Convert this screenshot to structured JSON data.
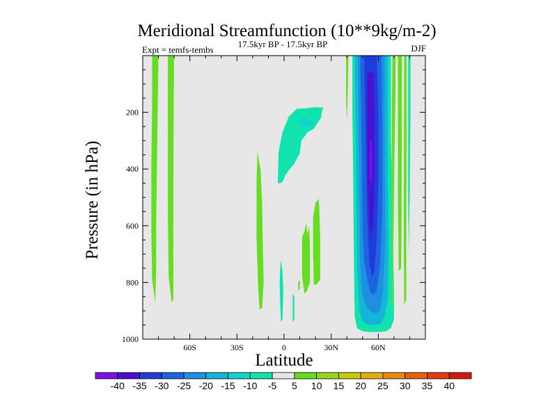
{
  "chart_data": {
    "type": "heatmap",
    "title": "Meridional Streamfunction (10**9kg/m-2)",
    "subtitle": "17.5kyr BP - 17.5kyr BP",
    "left_string": "Expt = temfs-tembs",
    "right_string": "DJF",
    "xlabel": "Latitude",
    "ylabel": "Pressure (in hPa)",
    "xlim": [
      -90,
      90
    ],
    "ylim": [
      0,
      1000
    ],
    "x_ticks": [
      {
        "value": -60,
        "label": "60S"
      },
      {
        "value": -30,
        "label": "30S"
      },
      {
        "value": 0,
        "label": "0"
      },
      {
        "value": 30,
        "label": "30N"
      },
      {
        "value": 60,
        "label": "60N"
      }
    ],
    "y_ticks": [
      {
        "value": 200,
        "label": "200"
      },
      {
        "value": 400,
        "label": "400"
      },
      {
        "value": 600,
        "label": "600"
      },
      {
        "value": 800,
        "label": "800"
      },
      {
        "value": 1000,
        "label": "1000"
      }
    ],
    "levels": [
      -40,
      -35,
      -30,
      -25,
      -20,
      -15,
      -10,
      -5,
      5,
      10,
      15,
      20,
      25,
      30,
      35,
      40
    ],
    "colors": [
      "#7d10e6",
      "#4a0fd1",
      "#1f3bd9",
      "#1e64e0",
      "#1f8fe0",
      "#14b5d9",
      "#0fd4c8",
      "#10e3ad",
      "#e6e6e6",
      "#66dd22",
      "#99d418",
      "#c8cc10",
      "#e0b010",
      "#e68a10",
      "#e66010",
      "#e03a10",
      "#d41a10"
    ],
    "background": "#e6e6e6",
    "regions": [
      {
        "name": "pos-col-82s",
        "level": 5,
        "poly": [
          [
            -84,
            0
          ],
          [
            -80,
            0
          ],
          [
            -80.5,
            200
          ],
          [
            -81,
            420
          ],
          [
            -81.5,
            620
          ],
          [
            -81.5,
            760
          ],
          [
            -82,
            870
          ],
          [
            -84,
            790
          ],
          [
            -84.5,
            620
          ],
          [
            -84.5,
            380
          ],
          [
            -84,
            160
          ]
        ]
      },
      {
        "name": "pos-col-72s",
        "level": 5,
        "poly": [
          [
            -74,
            0
          ],
          [
            -70,
            0
          ],
          [
            -70.3,
            200
          ],
          [
            -70.5,
            450
          ],
          [
            -70.5,
            700
          ],
          [
            -70.5,
            860
          ],
          [
            -71.5,
            870
          ],
          [
            -73.5,
            780
          ],
          [
            -74,
            560
          ],
          [
            -74,
            250
          ]
        ]
      },
      {
        "name": "pos-tongue-17s",
        "level": 5,
        "poly": [
          [
            -17,
            340
          ],
          [
            -15,
            400
          ],
          [
            -14,
            520
          ],
          [
            -13.5,
            680
          ],
          [
            -13,
            800
          ],
          [
            -14,
            890
          ],
          [
            -15.5,
            895
          ],
          [
            -16.5,
            820
          ],
          [
            -17.5,
            640
          ],
          [
            -17.5,
            450
          ]
        ]
      },
      {
        "name": "neg-upper-tropics",
        "level": -5,
        "poly": [
          [
            -4,
            450
          ],
          [
            -3.5,
            340
          ],
          [
            -1,
            270
          ],
          [
            3,
            215
          ],
          [
            8,
            188
          ],
          [
            15,
            185
          ],
          [
            20,
            182
          ],
          [
            25,
            183
          ],
          [
            24,
            200
          ],
          [
            23.5,
            220
          ],
          [
            21,
            240
          ],
          [
            19,
            258
          ],
          [
            15,
            270
          ],
          [
            11,
            300
          ],
          [
            10,
            345
          ],
          [
            6,
            385
          ],
          [
            3.5,
            400
          ],
          [
            1,
            420
          ],
          [
            -1,
            445
          ],
          [
            -2.5,
            450
          ]
        ]
      },
      {
        "name": "neg-upper-core",
        "level": -10,
        "poly": [
          [
            8,
            235
          ],
          [
            11,
            220
          ],
          [
            16,
            225
          ],
          [
            20,
            235
          ],
          [
            17,
            250
          ],
          [
            12,
            255
          ]
        ]
      },
      {
        "name": "neg-deep-0",
        "level": -5,
        "poly": [
          [
            -2,
            720
          ],
          [
            -1,
            760
          ],
          [
            -0.5,
            830
          ],
          [
            -1,
            930
          ],
          [
            -2,
            940
          ],
          [
            -2.5,
            870
          ],
          [
            -2.8,
            800
          ],
          [
            -2.5,
            750
          ]
        ]
      },
      {
        "name": "neg-deep-6n",
        "level": -5,
        "poly": [
          [
            5.5,
            840
          ],
          [
            6.5,
            850
          ],
          [
            6.5,
            930
          ],
          [
            5.5,
            940
          ]
        ]
      },
      {
        "name": "pos-12n",
        "level": 5,
        "poly": [
          [
            11.5,
            640
          ],
          [
            13,
            620
          ],
          [
            14,
            590
          ],
          [
            15,
            630
          ],
          [
            16,
            600
          ],
          [
            16.5,
            680
          ],
          [
            16.5,
            800
          ],
          [
            14.5,
            830
          ],
          [
            13,
            840
          ],
          [
            11.5,
            780
          ],
          [
            11.5,
            700
          ]
        ]
      },
      {
        "name": "pos-18n",
        "level": 5,
        "poly": [
          [
            18.5,
            570
          ],
          [
            20,
            520
          ],
          [
            22,
            505
          ],
          [
            22.5,
            550
          ],
          [
            23,
            650
          ],
          [
            23,
            790
          ],
          [
            21,
            805
          ],
          [
            19,
            810
          ],
          [
            18.5,
            700
          ]
        ]
      },
      {
        "name": "pos-9n-bottom",
        "level": 5,
        "poly": [
          [
            9,
            800
          ],
          [
            10,
            790
          ],
          [
            10,
            820
          ],
          [
            9,
            830
          ]
        ]
      },
      {
        "name": "pos-38n-upper",
        "level": 5,
        "poly": [
          [
            39.5,
            0
          ],
          [
            41,
            0
          ],
          [
            40.5,
            150
          ],
          [
            40,
            230
          ],
          [
            39.5,
            160
          ]
        ]
      },
      {
        "name": "neg-cell-edge",
        "level": -5,
        "poly": [
          [
            43.5,
            0
          ],
          [
            68,
            0
          ],
          [
            68,
            300
          ],
          [
            69,
            500
          ],
          [
            69.5,
            700
          ],
          [
            70,
            820
          ],
          [
            70,
            930
          ],
          [
            68,
            960
          ],
          [
            65,
            972
          ],
          [
            60,
            975
          ],
          [
            55,
            975
          ],
          [
            50,
            972
          ],
          [
            46.5,
            962
          ],
          [
            45,
            920
          ],
          [
            44.5,
            750
          ],
          [
            44,
            420
          ],
          [
            43.5,
            200
          ]
        ]
      },
      {
        "name": "neg-cell-15",
        "level": -15,
        "poly": [
          [
            45,
            0
          ],
          [
            54,
            0
          ],
          [
            56,
            0
          ],
          [
            66,
            0
          ],
          [
            66,
            400
          ],
          [
            66.5,
            700
          ],
          [
            66,
            860
          ],
          [
            64,
            920
          ],
          [
            62,
            945
          ],
          [
            58,
            950
          ],
          [
            53,
            948
          ],
          [
            50,
            938
          ],
          [
            48,
            900
          ],
          [
            46.5,
            750
          ],
          [
            46,
            450
          ],
          [
            45.5,
            200
          ]
        ]
      },
      {
        "name": "neg-cell-20",
        "level": -20,
        "poly": [
          [
            47,
            0
          ],
          [
            64,
            0
          ],
          [
            64,
            300
          ],
          [
            64.5,
            650
          ],
          [
            63,
            830
          ],
          [
            61,
            900
          ],
          [
            59,
            910
          ],
          [
            56,
            905
          ],
          [
            53,
            890
          ],
          [
            50,
            850
          ],
          [
            48.5,
            750
          ],
          [
            48,
            500
          ],
          [
            47.5,
            250
          ]
        ]
      },
      {
        "name": "neg-cell-25",
        "level": -25,
        "poly": [
          [
            48.5,
            0
          ],
          [
            62,
            0
          ],
          [
            62.5,
            250
          ],
          [
            62.5,
            550
          ],
          [
            61,
            750
          ],
          [
            59,
            830
          ],
          [
            57,
            845
          ],
          [
            55,
            835
          ],
          [
            53,
            790
          ],
          [
            51,
            720
          ],
          [
            50,
            600
          ],
          [
            49.5,
            350
          ]
        ]
      },
      {
        "name": "neg-cell-30",
        "level": -30,
        "poly": [
          [
            51,
            0
          ],
          [
            59,
            0
          ],
          [
            60,
            200
          ],
          [
            60,
            450
          ],
          [
            59,
            650
          ],
          [
            57.5,
            760
          ],
          [
            56,
            780
          ],
          [
            54.5,
            740
          ],
          [
            53.5,
            650
          ],
          [
            52.5,
            500
          ],
          [
            52,
            300
          ]
        ]
      },
      {
        "name": "neg-cell-35",
        "level": -35,
        "poly": [
          [
            53,
            60
          ],
          [
            57,
            60
          ],
          [
            57.5,
            250
          ],
          [
            57.5,
            450
          ],
          [
            56.5,
            600
          ],
          [
            55.5,
            640
          ],
          [
            54.5,
            600
          ],
          [
            53.5,
            450
          ],
          [
            53,
            250
          ]
        ]
      },
      {
        "name": "neg-cell-40",
        "level": -40,
        "poly": [
          [
            54.5,
            300
          ],
          [
            56,
            300
          ],
          [
            56,
            420
          ],
          [
            55.2,
            470
          ],
          [
            54.5,
            420
          ]
        ]
      },
      {
        "name": "pos-70n",
        "level": 5,
        "poly": [
          [
            69,
            0
          ],
          [
            71,
            0
          ],
          [
            71,
            120
          ],
          [
            70.5,
            280
          ],
          [
            70,
            500
          ],
          [
            69.5,
            700
          ],
          [
            69.5,
            870
          ],
          [
            68.8,
            890
          ],
          [
            68.5,
            700
          ],
          [
            68.5,
            300
          ]
        ]
      },
      {
        "name": "pos-73n",
        "level": 5,
        "poly": [
          [
            72.5,
            0
          ],
          [
            75,
            0
          ],
          [
            75,
            300
          ],
          [
            74.8,
            600
          ],
          [
            74.5,
            750
          ],
          [
            73,
            760
          ],
          [
            72.5,
            500
          ]
        ]
      },
      {
        "name": "pos-77n",
        "level": 5,
        "poly": [
          [
            76.5,
            0
          ],
          [
            78,
            0
          ],
          [
            78,
            300
          ],
          [
            77.8,
            600
          ],
          [
            77.8,
            860
          ],
          [
            76.5,
            880
          ],
          [
            76.2,
            600
          ],
          [
            76.3,
            300
          ]
        ]
      },
      {
        "name": "neg-79n",
        "level": -5,
        "poly": [
          [
            79,
            0
          ],
          [
            80.5,
            0
          ],
          [
            80.5,
            200
          ],
          [
            80,
            500
          ],
          [
            79.5,
            700
          ],
          [
            79,
            500
          ]
        ]
      }
    ]
  }
}
